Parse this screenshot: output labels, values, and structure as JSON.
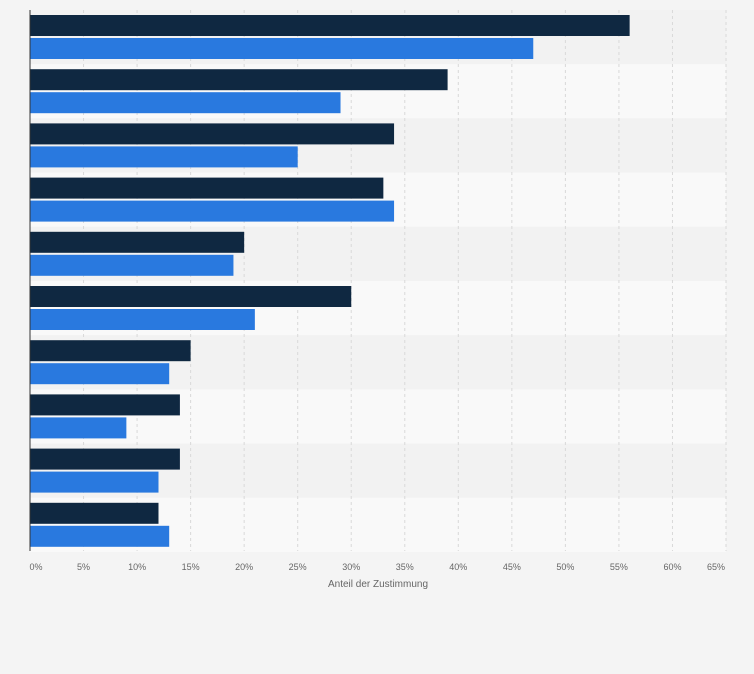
{
  "chart_data": {
    "type": "bar",
    "orientation": "horizontal",
    "xlabel": "Anteil der Zustimmung",
    "tick_labels": [
      "0%",
      "5%",
      "10%",
      "15%",
      "20%",
      "25%",
      "30%",
      "35%",
      "40%",
      "45%",
      "50%",
      "55%",
      "60%",
      "65%"
    ],
    "xlim": [
      0,
      65
    ],
    "grid": true,
    "categories": [
      "",
      "",
      "",
      "",
      "",
      "",
      "",
      "",
      "",
      ""
    ],
    "series": [
      {
        "color": "#0f2841",
        "values": [
          56,
          39,
          34,
          33,
          20,
          30,
          15,
          14,
          14,
          12
        ]
      },
      {
        "color": "#2979df",
        "values": [
          47,
          29,
          25,
          34,
          19,
          21,
          13,
          9,
          12,
          13
        ]
      }
    ]
  }
}
